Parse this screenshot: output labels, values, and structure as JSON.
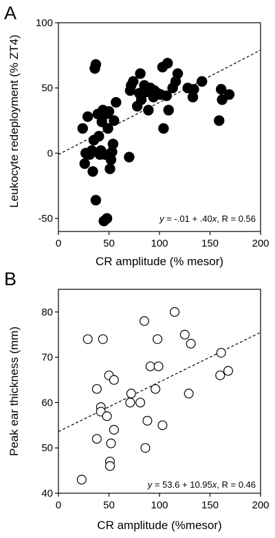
{
  "chart_data": [
    {
      "panel": "A",
      "type": "scatter",
      "xlabel": "CR amplitude (% mesor)",
      "ylabel": "Leukocyte redeployment (% ZT4)",
      "xlim": [
        0,
        200
      ],
      "ylim": [
        -60,
        100
      ],
      "xticks": [
        "0",
        "50",
        "100",
        "150",
        "200"
      ],
      "yticks": [
        "-50",
        "0",
        "50",
        "100"
      ],
      "marker": "filled-circle",
      "annotation": {
        "y_label": "y",
        "middle": " = -.01 + .40",
        "x_label": "x",
        "r_text": ", R = 0.56"
      },
      "fit": {
        "intercept": -1,
        "slope": 0.4
      },
      "points": [
        [
          24,
          19
        ],
        [
          26,
          -8
        ],
        [
          27,
          0
        ],
        [
          29,
          28
        ],
        [
          31,
          -1
        ],
        [
          33,
          2
        ],
        [
          34,
          -14
        ],
        [
          35,
          10
        ],
        [
          36,
          65
        ],
        [
          37,
          68
        ],
        [
          37,
          -36
        ],
        [
          39,
          30
        ],
        [
          40,
          13
        ],
        [
          41,
          -1
        ],
        [
          42,
          2
        ],
        [
          43,
          24
        ],
        [
          44,
          33
        ],
        [
          45,
          -52
        ],
        [
          46,
          -1
        ],
        [
          47,
          30
        ],
        [
          48,
          -50
        ],
        [
          49,
          19
        ],
        [
          50,
          32
        ],
        [
          51,
          -12
        ],
        [
          52,
          -5
        ],
        [
          53,
          1
        ],
        [
          54,
          7
        ],
        [
          55,
          25
        ],
        [
          57,
          39
        ],
        [
          70,
          -3
        ],
        [
          71,
          48
        ],
        [
          72,
          52
        ],
        [
          74,
          55
        ],
        [
          78,
          36
        ],
        [
          80,
          46
        ],
        [
          81,
          61
        ],
        [
          82,
          41
        ],
        [
          85,
          52
        ],
        [
          87,
          47
        ],
        [
          89,
          33
        ],
        [
          91,
          50
        ],
        [
          94,
          43
        ],
        [
          95,
          48
        ],
        [
          98,
          46
        ],
        [
          101,
          45
        ],
        [
          103,
          66
        ],
        [
          104,
          19
        ],
        [
          107,
          44
        ],
        [
          108,
          69
        ],
        [
          109,
          33
        ],
        [
          113,
          50
        ],
        [
          116,
          55
        ],
        [
          118,
          61
        ],
        [
          128,
          50
        ],
        [
          133,
          43
        ],
        [
          134,
          49
        ],
        [
          142,
          55
        ],
        [
          159,
          25
        ],
        [
          161,
          49
        ],
        [
          162,
          41
        ],
        [
          169,
          45
        ]
      ]
    },
    {
      "panel": "B",
      "type": "scatter",
      "xlabel": "CR amplitude (%mesor)",
      "ylabel": "Peak ear thickness (mm)",
      "xlim": [
        0,
        200
      ],
      "ylim": [
        40,
        85
      ],
      "xticks": [
        "0",
        "50",
        "100",
        "150",
        "200"
      ],
      "yticks": [
        "40",
        "50",
        "60",
        "70",
        "80"
      ],
      "marker": "open-circle",
      "annotation": {
        "y_label": "y",
        "middle": " = 53.6 + 10.95",
        "x_label": "x",
        "r_text": ", R = 0.46"
      },
      "fit": {
        "intercept": 53.6,
        "slope": 0.1095
      },
      "points": [
        [
          23,
          43
        ],
        [
          29,
          74
        ],
        [
          38,
          52
        ],
        [
          38,
          63
        ],
        [
          42,
          59
        ],
        [
          42,
          58
        ],
        [
          44,
          74
        ],
        [
          48,
          57
        ],
        [
          50,
          66
        ],
        [
          51,
          47
        ],
        [
          51,
          46
        ],
        [
          52,
          51
        ],
        [
          55,
          65
        ],
        [
          55,
          54
        ],
        [
          71,
          60
        ],
        [
          72,
          62
        ],
        [
          81,
          60
        ],
        [
          85,
          78
        ],
        [
          86,
          50
        ],
        [
          88,
          56
        ],
        [
          91,
          68
        ],
        [
          96,
          63
        ],
        [
          98,
          74
        ],
        [
          99,
          68
        ],
        [
          103,
          55
        ],
        [
          115,
          80
        ],
        [
          125,
          75
        ],
        [
          129,
          62
        ],
        [
          131,
          73
        ],
        [
          160,
          66
        ],
        [
          161,
          71
        ],
        [
          168,
          67
        ]
      ]
    }
  ]
}
